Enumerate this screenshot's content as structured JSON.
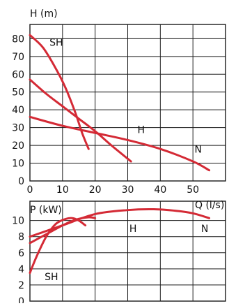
{
  "colors": {
    "curve": "#d42a35",
    "grid": "#1a1a1a",
    "text": "#111111"
  },
  "chart_data": [
    {
      "type": "line",
      "title": "",
      "xlabel": "Q (l/s)",
      "ylabel": "H (m)",
      "xlim": [
        0,
        60
      ],
      "ylim": [
        0,
        88
      ],
      "xticks": [
        0,
        10,
        20,
        30,
        40,
        50
      ],
      "yticks": [
        0,
        10,
        20,
        30,
        40,
        50,
        60,
        70,
        80
      ],
      "grid": true,
      "series": [
        {
          "name": "SH",
          "x": [
            0,
            4,
            8,
            11,
            14,
            16,
            18
          ],
          "y": [
            82,
            75,
            63,
            52,
            38,
            27,
            18
          ]
        },
        {
          "name": "",
          "x": [
            0,
            5,
            10,
            15,
            20,
            25,
            31
          ],
          "y": [
            57,
            49,
            42,
            35,
            28,
            20,
            11
          ]
        },
        {
          "name": "H",
          "x": [
            0,
            10,
            20,
            30,
            40,
            50,
            55
          ],
          "y": [
            36,
            31,
            27,
            23,
            18,
            11,
            6
          ]
        }
      ],
      "annotations": [
        {
          "text": "SH",
          "x": 6,
          "y": 76
        },
        {
          "text": "H",
          "x": 33,
          "y": 27
        },
        {
          "text": "N",
          "x": 50.5,
          "y": 16
        }
      ]
    },
    {
      "type": "line",
      "title": "",
      "xlabel": "",
      "ylabel": "P (kW)",
      "xlim": [
        0,
        60
      ],
      "ylim": [
        0,
        12.4
      ],
      "xticks": [],
      "yticks": [
        0,
        2,
        4,
        6,
        8,
        10
      ],
      "grid": true,
      "series": [
        {
          "name": "SH",
          "x": [
            0,
            2,
            5,
            8,
            11,
            13,
            15,
            17
          ],
          "y": [
            3.5,
            5.5,
            8,
            9.6,
            10.2,
            10.3,
            10,
            9.4
          ]
        },
        {
          "name": "",
          "x": [
            0,
            5,
            10,
            14,
            18,
            20
          ],
          "y": [
            7.2,
            8.3,
            9.4,
            10.1,
            10.4,
            10.3
          ]
        },
        {
          "name": "H",
          "x": [
            0,
            10,
            20,
            30,
            38,
            45,
            50,
            55
          ],
          "y": [
            8,
            9.4,
            10.8,
            11.3,
            11.4,
            11.2,
            10.9,
            10.3
          ]
        }
      ],
      "annotations": [
        {
          "text": "SH",
          "x": 4.5,
          "y": 2.6
        },
        {
          "text": "H",
          "x": 30.5,
          "y": 8.6
        },
        {
          "text": "N",
          "x": 52.5,
          "y": 8.6
        }
      ]
    }
  ]
}
